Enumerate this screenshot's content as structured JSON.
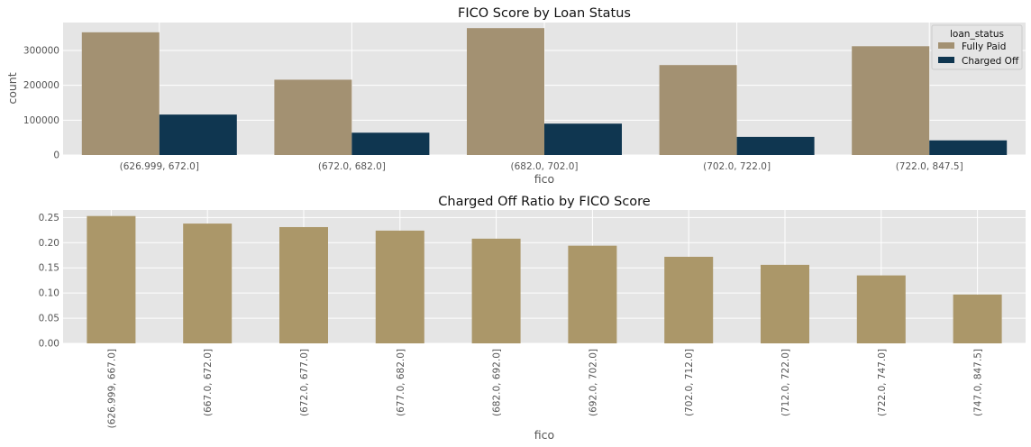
{
  "colors": {
    "fully_paid": "#A39172",
    "charged_off": "#0F3650",
    "ratio_bar": "#AB9769",
    "plot_bg": "#E5E5E5",
    "grid": "#FFFFFF"
  },
  "chart_data": [
    {
      "type": "bar",
      "title": "FICO Score by Loan Status",
      "xlabel": "fico",
      "ylabel": "count",
      "categories": [
        "(626.999, 672.0]",
        "(672.0, 682.0]",
        "(682.0, 702.0]",
        "(702.0, 722.0]",
        "(722.0, 847.5]"
      ],
      "legend_title": "loan_status",
      "legend_position": "top-right",
      "series": [
        {
          "name": "Fully Paid",
          "values": [
            352000,
            216000,
            364000,
            258000,
            312000
          ]
        },
        {
          "name": "Charged Off",
          "values": [
            116000,
            64000,
            90000,
            52000,
            42000
          ]
        }
      ],
      "yticks": [
        "0",
        "100000",
        "200000",
        "300000"
      ],
      "ylim": [
        0,
        380000
      ],
      "grid": true
    },
    {
      "type": "bar",
      "title": "Charged Off Ratio by FICO Score",
      "xlabel": "fico",
      "ylabel": "",
      "categories": [
        "(626.999, 667.0]",
        "(667.0, 672.0]",
        "(672.0, 677.0]",
        "(677.0, 682.0]",
        "(682.0, 692.0]",
        "(692.0, 702.0]",
        "(702.0, 712.0]",
        "(712.0, 722.0]",
        "(722.0, 747.0]",
        "(747.0, 847.5]"
      ],
      "values": [
        0.253,
        0.238,
        0.231,
        0.224,
        0.208,
        0.194,
        0.172,
        0.156,
        0.135,
        0.097
      ],
      "yticks": [
        "0.00",
        "0.05",
        "0.10",
        "0.15",
        "0.20",
        "0.25"
      ],
      "ylim": [
        0,
        0.265
      ],
      "grid": true
    }
  ]
}
